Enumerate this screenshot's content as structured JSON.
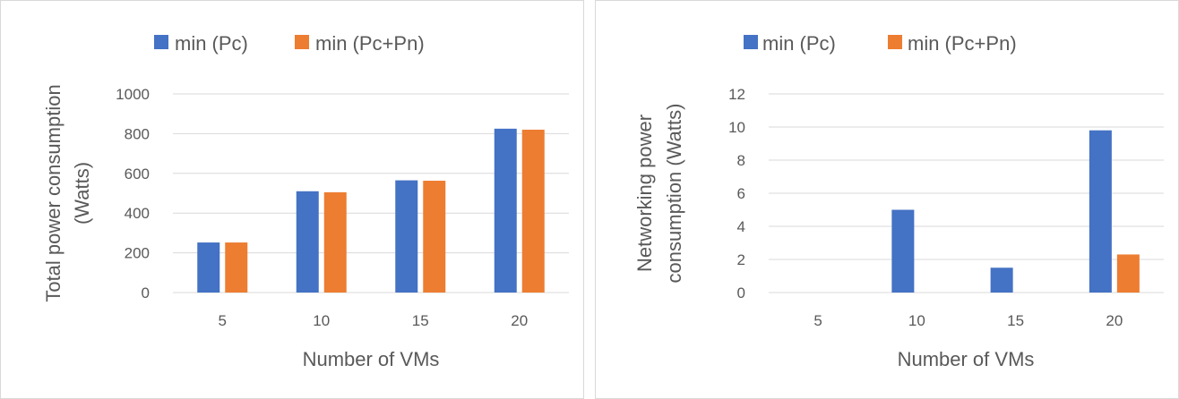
{
  "colors": {
    "series1": "#4472c4",
    "series2": "#ed7d31",
    "grid": "#d9d9d9",
    "text": "#595959"
  },
  "chart_data": [
    {
      "type": "bar",
      "categories": [
        "5",
        "10",
        "15",
        "20"
      ],
      "series": [
        {
          "name": "min (Pc)",
          "values": [
            252,
            510,
            565,
            825
          ]
        },
        {
          "name": "min (Pc+Pn)",
          "values": [
            252,
            505,
            563,
            820
          ]
        }
      ],
      "title": "",
      "xlabel": "Number of VMs",
      "ylabel": "Total power consumption (Watts)",
      "ylabel_lines": [
        "Total power consumption",
        "(Watts)"
      ],
      "ylim": [
        0,
        1000
      ],
      "yticks": [
        0,
        200,
        400,
        600,
        800,
        1000
      ],
      "grid": true,
      "legend": "top"
    },
    {
      "type": "bar",
      "categories": [
        "5",
        "10",
        "15",
        "20"
      ],
      "series": [
        {
          "name": "min (Pc)",
          "values": [
            0,
            5.0,
            1.5,
            9.8
          ]
        },
        {
          "name": "min (Pc+Pn)",
          "values": [
            0,
            0,
            0,
            2.3
          ]
        }
      ],
      "title": "",
      "xlabel": "Number of VMs",
      "ylabel": "Networking power consumption (Watts)",
      "ylabel_lines": [
        "Networking  power",
        "consumption (Watts)"
      ],
      "ylim": [
        0,
        12
      ],
      "yticks": [
        0,
        2,
        4,
        6,
        8,
        10,
        12
      ],
      "grid": true,
      "legend": "top"
    }
  ]
}
